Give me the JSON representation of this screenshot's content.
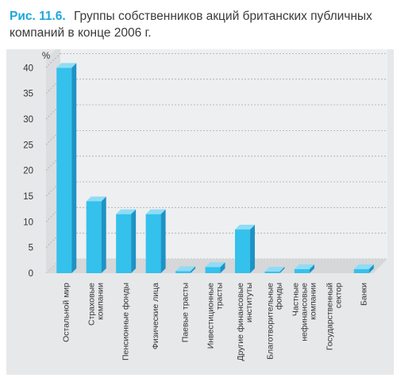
{
  "caption": {
    "number": "Рис. 11.6.",
    "text": "Группы собственников акций британских публичных компаний в конце 2006 г."
  },
  "colors": {
    "bar_front": "#34c1ec",
    "bar_top": "#8fdcf6",
    "bar_side": "#1d93c6",
    "floor": "#d6d7d9",
    "back_wall": "#eeeff1",
    "panel": "#e7e8ea",
    "grid": "#a9abae"
  },
  "chart_data": {
    "type": "bar",
    "ylabel": "%",
    "ylim": [
      0,
      40
    ],
    "yticks": [
      0,
      5,
      10,
      15,
      20,
      25,
      30,
      35,
      40
    ],
    "grid": true,
    "categories": [
      [
        "Остальной мир"
      ],
      [
        "Страховые",
        "компании"
      ],
      [
        "Пенсионные фонды"
      ],
      [
        "Физические лица"
      ],
      [
        "Паевые трасты"
      ],
      [
        "Инвестиционные",
        "трасты"
      ],
      [
        "Другие финансовые",
        "институты"
      ],
      [
        "Благотворительные",
        "фонды"
      ],
      [
        "Частные",
        "нефинансовые",
        "компании"
      ],
      [
        "Государственный",
        "сектор"
      ],
      [
        "Банки"
      ]
    ],
    "values": [
      40,
      14,
      11.5,
      11.5,
      0.4,
      1.2,
      8.5,
      0.3,
      0.8,
      0,
      0.8
    ]
  }
}
